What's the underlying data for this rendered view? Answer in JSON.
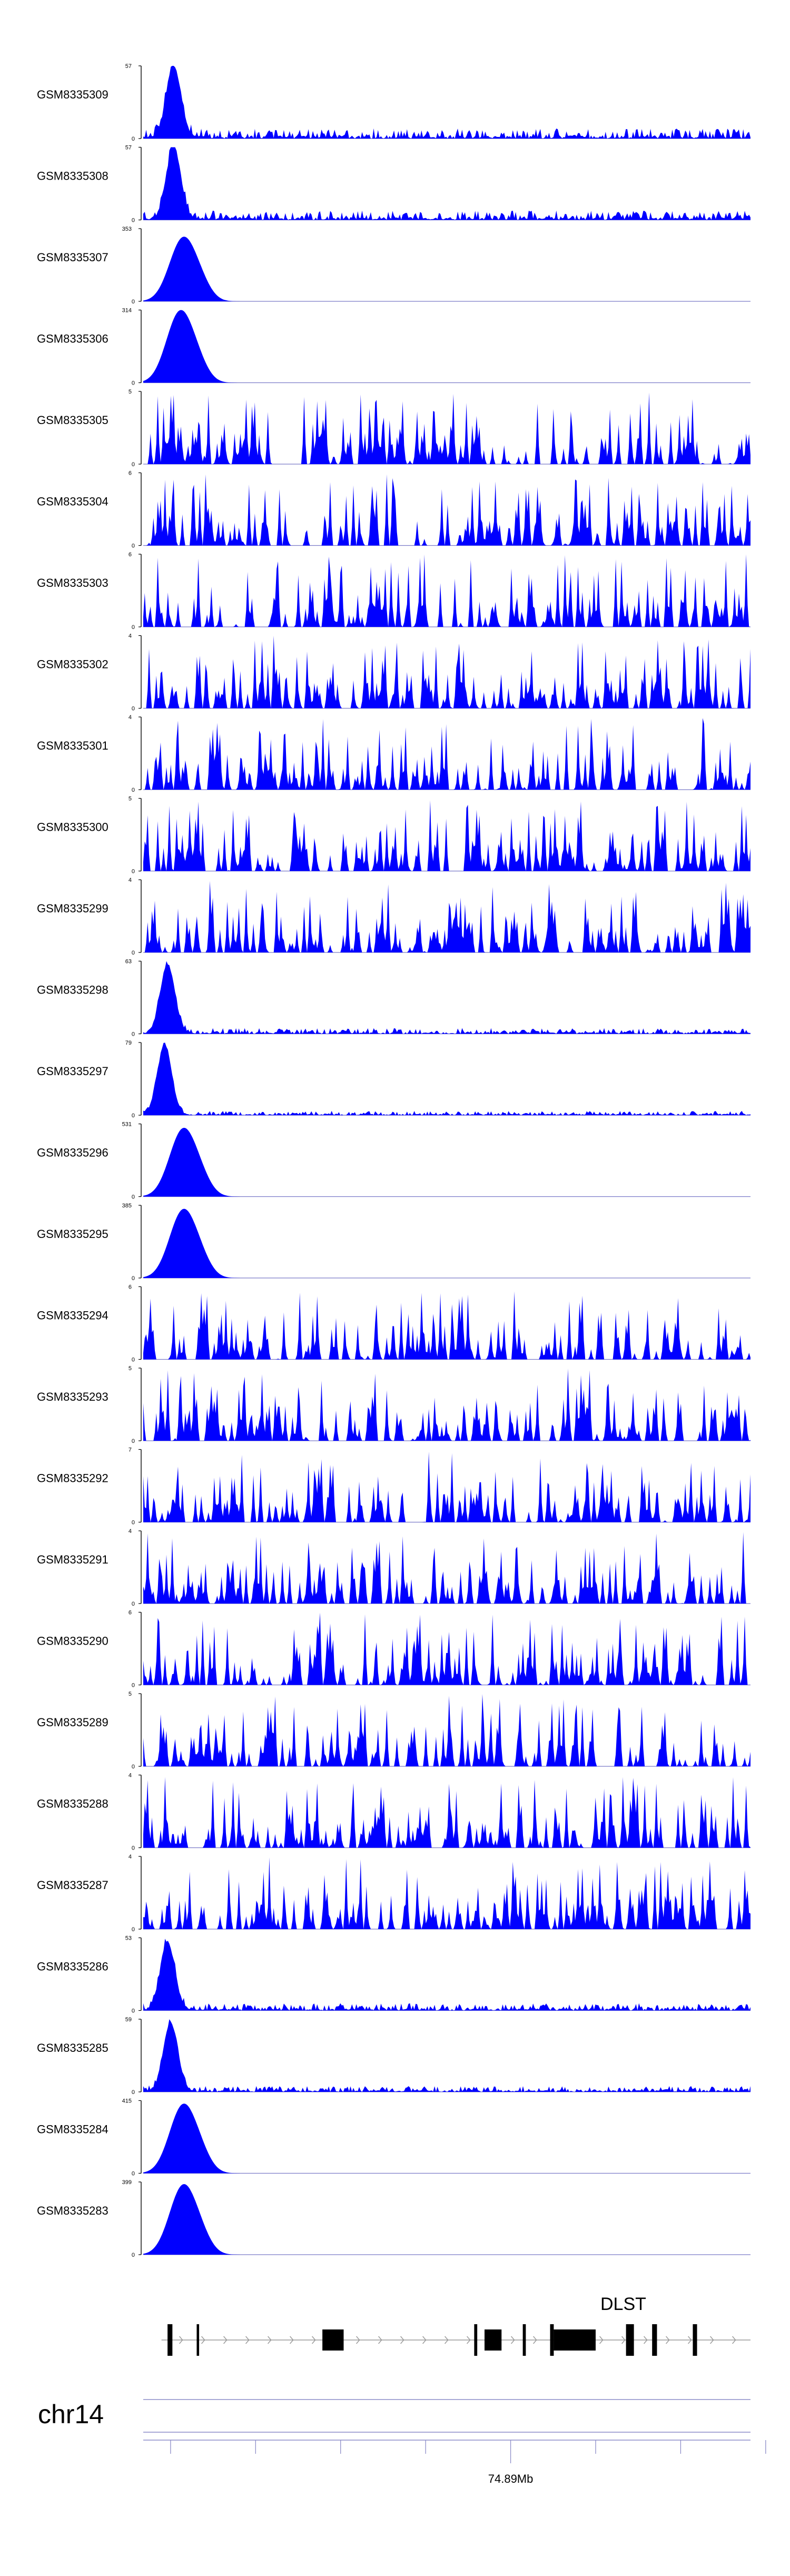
{
  "colors": {
    "signal": "#0000FF",
    "axis": "#000000",
    "baseline": "#7A7AC8",
    "gene": "#000000",
    "intron_arrow": "#9A9A9A",
    "ideogram": "#8C8CC8"
  },
  "chart_data": {
    "type": "area",
    "description_grid": false,
    "tracks": [
      {
        "name": "GSM8335309",
        "ylim": [
          0,
          57
        ],
        "profile": "peak",
        "peak_pos": 0.05,
        "peak": 57,
        "noise": 0.14
      },
      {
        "name": "GSM8335308",
        "ylim": [
          0,
          57
        ],
        "profile": "peak",
        "peak_pos": 0.05,
        "peak": 57,
        "noise": 0.13
      },
      {
        "name": "GSM8335307",
        "ylim": [
          0,
          353
        ],
        "profile": "sharp",
        "peak_pos": 0.065,
        "peak": 300,
        "noise": 0.01
      },
      {
        "name": "GSM8335306",
        "ylim": [
          0,
          314
        ],
        "profile": "sharp",
        "peak_pos": 0.06,
        "peak": 300,
        "noise": 0.01
      },
      {
        "name": "GSM8335305",
        "ylim": [
          0,
          5
        ],
        "profile": "noise",
        "seed": 305
      },
      {
        "name": "GSM8335304",
        "ylim": [
          0,
          6
        ],
        "profile": "noise",
        "seed": 304
      },
      {
        "name": "GSM8335303",
        "ylim": [
          0,
          6
        ],
        "profile": "noise",
        "seed": 303
      },
      {
        "name": "GSM8335302",
        "ylim": [
          0,
          4
        ],
        "profile": "noise",
        "seed": 302
      },
      {
        "name": "GSM8335301",
        "ylim": [
          0,
          4
        ],
        "profile": "noise",
        "seed": 301
      },
      {
        "name": "GSM8335300",
        "ylim": [
          0,
          5
        ],
        "profile": "noise",
        "seed": 300
      },
      {
        "name": "GSM8335299",
        "ylim": [
          0,
          4
        ],
        "profile": "noise",
        "seed": 299
      },
      {
        "name": "GSM8335298",
        "ylim": [
          0,
          63
        ],
        "profile": "peak",
        "peak_pos": 0.04,
        "peak": 60,
        "noise": 0.08
      },
      {
        "name": "GSM8335297",
        "ylim": [
          0,
          79
        ],
        "profile": "peak",
        "peak_pos": 0.035,
        "peak": 75,
        "noise": 0.06
      },
      {
        "name": "GSM8335296",
        "ylim": [
          0,
          531
        ],
        "profile": "sharp",
        "peak_pos": 0.065,
        "peak": 480,
        "noise": 0.005
      },
      {
        "name": "GSM8335295",
        "ylim": [
          0,
          385
        ],
        "profile": "sharp",
        "peak_pos": 0.065,
        "peak": 350,
        "noise": 0.005
      },
      {
        "name": "GSM8335294",
        "ylim": [
          0,
          6
        ],
        "profile": "noise",
        "seed": 294
      },
      {
        "name": "GSM8335293",
        "ylim": [
          0,
          5
        ],
        "profile": "noise",
        "seed": 293
      },
      {
        "name": "GSM8335292",
        "ylim": [
          0,
          7
        ],
        "profile": "noise",
        "seed": 292
      },
      {
        "name": "GSM8335291",
        "ylim": [
          0,
          4
        ],
        "profile": "noise",
        "seed": 291
      },
      {
        "name": "GSM8335290",
        "ylim": [
          0,
          6
        ],
        "profile": "noise",
        "seed": 290
      },
      {
        "name": "GSM8335289",
        "ylim": [
          0,
          5
        ],
        "profile": "noise",
        "seed": 289
      },
      {
        "name": "GSM8335288",
        "ylim": [
          0,
          4
        ],
        "profile": "noise",
        "seed": 288
      },
      {
        "name": "GSM8335287",
        "ylim": [
          0,
          4
        ],
        "profile": "noise",
        "seed": 287
      },
      {
        "name": "GSM8335286",
        "ylim": [
          0,
          53
        ],
        "profile": "peak",
        "peak_pos": 0.04,
        "peak": 50,
        "noise": 0.1
      },
      {
        "name": "GSM8335285",
        "ylim": [
          0,
          59
        ],
        "profile": "peak",
        "peak_pos": 0.045,
        "peak": 56,
        "noise": 0.08
      },
      {
        "name": "GSM8335284",
        "ylim": [
          0,
          415
        ],
        "profile": "sharp",
        "peak_pos": 0.065,
        "peak": 380,
        "noise": 0.005
      },
      {
        "name": "GSM8335283",
        "ylim": [
          0,
          399
        ],
        "profile": "sharp",
        "peak_pos": 0.065,
        "peak": 370,
        "noise": 0.005
      }
    ],
    "gene_track": {
      "gene_name": "DLST",
      "strand": "+",
      "exons": [
        {
          "start": 0.04,
          "end": 0.048,
          "height": "tall"
        },
        {
          "start": 0.088,
          "end": 0.092,
          "height": "tall"
        },
        {
          "start": 0.295,
          "end": 0.33,
          "height": "mid"
        },
        {
          "start": 0.545,
          "end": 0.55,
          "height": "tall"
        },
        {
          "start": 0.562,
          "end": 0.59,
          "height": "mid"
        },
        {
          "start": 0.625,
          "end": 0.63,
          "height": "tall"
        },
        {
          "start": 0.67,
          "end": 0.676,
          "height": "tall"
        },
        {
          "start": 0.676,
          "end": 0.745,
          "height": "mid"
        },
        {
          "start": 0.795,
          "end": 0.808,
          "height": "tall"
        },
        {
          "start": 0.838,
          "end": 0.846,
          "height": "tall"
        },
        {
          "start": 0.905,
          "end": 0.912,
          "height": "tall"
        }
      ]
    },
    "ideogram": {
      "chromosome": "chr14"
    },
    "axis": {
      "tick_label": "74.89Mb",
      "tick_count": 8,
      "labeled_tick_index": 4
    }
  }
}
